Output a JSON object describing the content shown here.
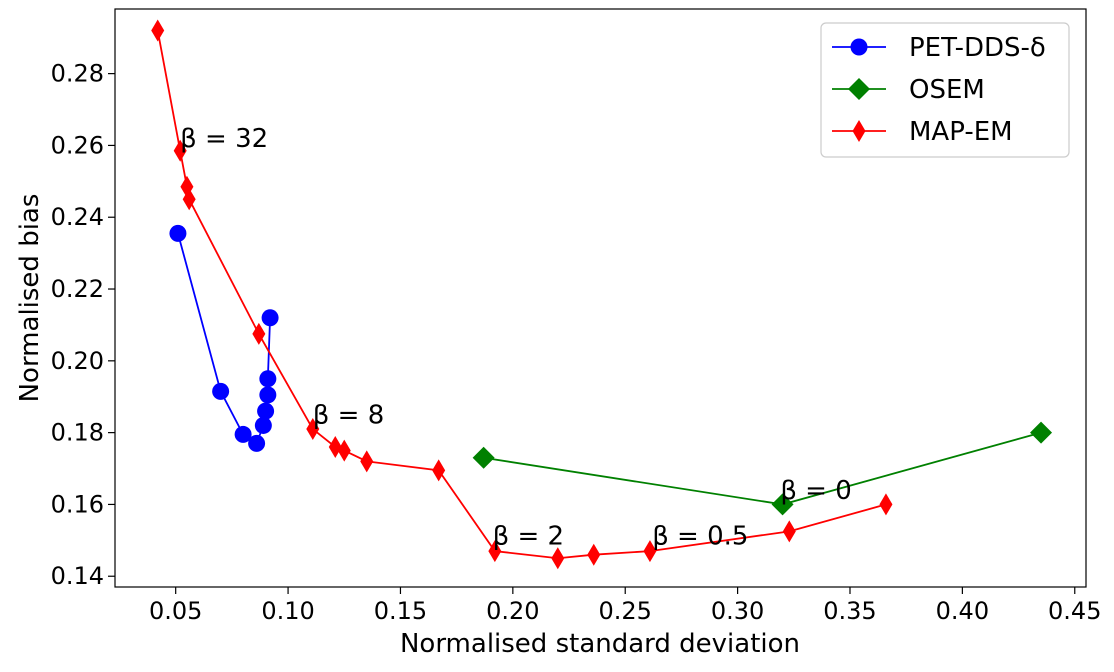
{
  "chart_data": {
    "type": "scatter",
    "title": "",
    "xlabel": "Normalised standard deviation",
    "ylabel": "Normalised bias",
    "xlim": [
      0.023,
      0.455
    ],
    "ylim": [
      0.137,
      0.298
    ],
    "xticks": [
      0.05,
      0.1,
      0.15,
      0.2,
      0.25,
      0.3,
      0.35,
      0.4,
      0.45
    ],
    "xtick_labels": [
      "0.05",
      "0.10",
      "0.15",
      "0.20",
      "0.25",
      "0.30",
      "0.35",
      "0.40",
      "0.45"
    ],
    "yticks": [
      0.14,
      0.16,
      0.18,
      0.2,
      0.22,
      0.24,
      0.26,
      0.28
    ],
    "ytick_labels": [
      "0.14",
      "0.16",
      "0.18",
      "0.20",
      "0.22",
      "0.24",
      "0.26",
      "0.28"
    ],
    "grid": false,
    "legend_position": "top-right",
    "series": [
      {
        "name": "PET-DDS-δ",
        "color": "#0000ff",
        "marker": "circle",
        "x": [
          0.051,
          0.07,
          0.08,
          0.086,
          0.089,
          0.09,
          0.091,
          0.091,
          0.092
        ],
        "y": [
          0.2355,
          0.1915,
          0.1795,
          0.177,
          0.182,
          0.186,
          0.1905,
          0.195,
          0.212
        ]
      },
      {
        "name": "OSEM",
        "color": "#008000",
        "marker": "diamond",
        "x": [
          0.187,
          0.32,
          0.435
        ],
        "y": [
          0.173,
          0.16,
          0.18
        ]
      },
      {
        "name": "MAP-EM",
        "color": "#ff0000",
        "marker": "thin_diamond",
        "x": [
          0.042,
          0.052,
          0.055,
          0.056,
          0.087,
          0.111,
          0.121,
          0.125,
          0.135,
          0.167,
          0.192,
          0.22,
          0.236,
          0.261,
          0.323,
          0.366
        ],
        "y": [
          0.292,
          0.2585,
          0.2485,
          0.245,
          0.2075,
          0.181,
          0.176,
          0.175,
          0.172,
          0.1695,
          0.147,
          0.145,
          0.146,
          0.147,
          0.1525,
          0.16
        ]
      }
    ],
    "annotations": [
      {
        "text": "β = 32",
        "x": 0.052,
        "y": 0.2595
      },
      {
        "text": "β = 8",
        "x": 0.111,
        "y": 0.1825
      },
      {
        "text": "β = 2",
        "x": 0.191,
        "y": 0.1488
      },
      {
        "text": "β = 0.5",
        "x": 0.262,
        "y": 0.1488
      },
      {
        "text": "β = 0",
        "x": 0.319,
        "y": 0.1615
      }
    ]
  }
}
